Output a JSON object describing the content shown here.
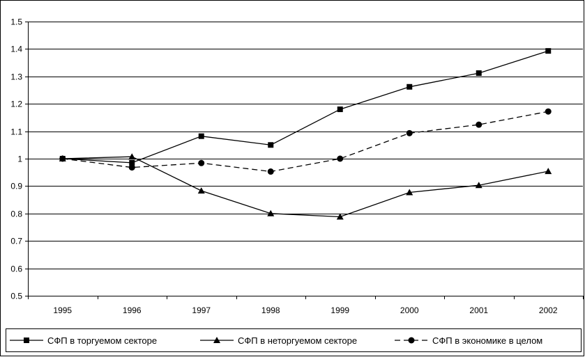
{
  "chart_data": {
    "type": "line",
    "categories": [
      "1995",
      "1996",
      "1997",
      "1998",
      "1999",
      "2000",
      "2001",
      "2002"
    ],
    "ylim": [
      0.5,
      1.5
    ],
    "yticks": [
      "0.5",
      "0.6",
      "0.7",
      "0.8",
      "0.9",
      "1",
      "1.1",
      "1.2",
      "1.3",
      "1.4",
      "1.5"
    ],
    "grid": "horizontal",
    "legend_position": "bottom",
    "series": [
      {
        "name": "СФП в торгуемом секторе",
        "values": [
          1.0,
          0.985,
          1.082,
          1.05,
          1.18,
          1.262,
          1.312,
          1.393
        ],
        "marker": "square",
        "dash": "solid",
        "color": "#000000"
      },
      {
        "name": "СФП в неторгуемом секторе",
        "values": [
          1.0,
          1.007,
          0.883,
          0.8,
          0.788,
          0.877,
          0.903,
          0.954
        ],
        "marker": "triangle",
        "dash": "solid",
        "color": "#000000"
      },
      {
        "name": "СФП в экономике в целом",
        "values": [
          1.0,
          0.968,
          0.984,
          0.953,
          1.0,
          1.093,
          1.124,
          1.172
        ],
        "marker": "circle",
        "dash": "dashed",
        "color": "#000000"
      }
    ]
  }
}
